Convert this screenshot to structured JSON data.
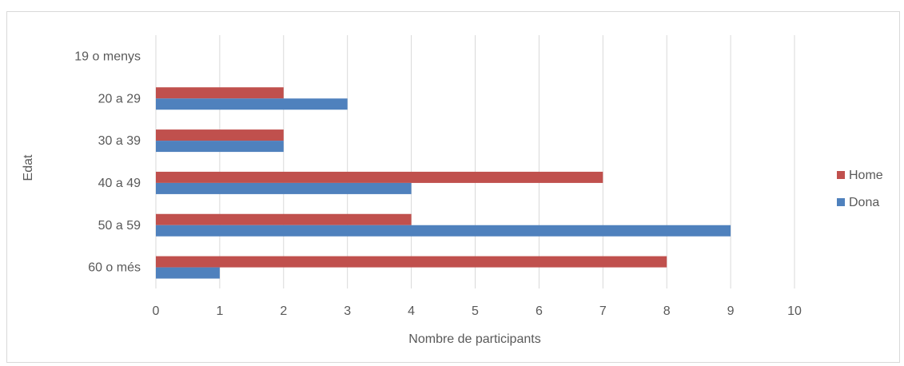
{
  "chart_data": {
    "type": "bar",
    "orientation": "horizontal",
    "title": "",
    "xlabel": "Nombre de participants",
    "ylabel": "Edat",
    "categories": [
      "19 o menys",
      "20 a 29",
      "30 a 39",
      "40 a 49",
      "50 a 59",
      "60 o més"
    ],
    "series": [
      {
        "name": "Home",
        "color": "#c0504d",
        "values": [
          0,
          2,
          2,
          7,
          4,
          8
        ]
      },
      {
        "name": "Dona",
        "color": "#4f81bd",
        "values": [
          0,
          3,
          2,
          4,
          9,
          1
        ]
      }
    ],
    "xlim": [
      0,
      10
    ],
    "xticks": [
      0,
      1,
      2,
      3,
      4,
      5,
      6,
      7,
      8,
      9,
      10
    ],
    "grid": "vertical",
    "legend_position": "right"
  }
}
